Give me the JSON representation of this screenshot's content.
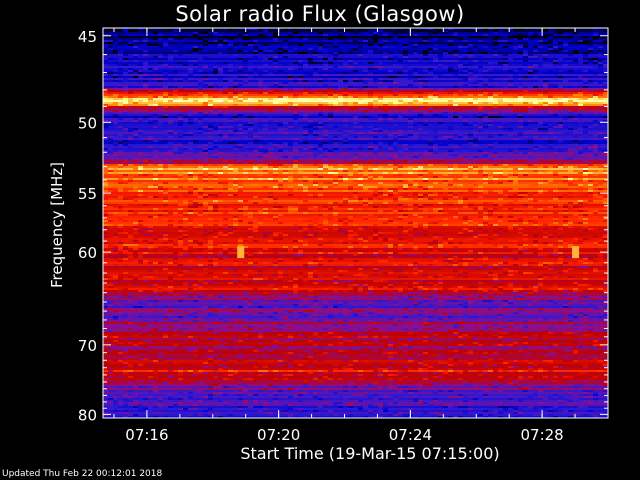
{
  "chart_data": {
    "type": "heatmap",
    "title": "Solar radio Flux (Glasgow)",
    "ylabel": "Frequency [MHz]",
    "xlabel": "Start Time (19-Mar-15 07:15:00)",
    "x_range_minutes": [
      "07:14:40",
      "07:30:00"
    ],
    "ylim": [
      44.6,
      80.6
    ],
    "y_scale": "reciprocal",
    "y_ticks": [
      45,
      50,
      55,
      60,
      70,
      80
    ],
    "y_tick_labels": [
      "45",
      "50",
      "55",
      "60",
      "70",
      "80"
    ],
    "x_ticks": [
      "07:16",
      "07:20",
      "07:24",
      "07:28"
    ],
    "colormap": [
      "#000000",
      "#0000c8",
      "#3218d0",
      "#8a0f90",
      "#c00000",
      "#ff2000",
      "#ff8000",
      "#ffff90",
      "#ffffff"
    ],
    "intensity_by_frequency": [
      {
        "mhz": 44.6,
        "level": 0.05
      },
      {
        "mhz": 45.5,
        "level": 0.12
      },
      {
        "mhz": 46.5,
        "level": 0.18
      },
      {
        "mhz": 47.8,
        "level": 0.2
      },
      {
        "mhz": 48.6,
        "level": 0.95
      },
      {
        "mhz": 49.5,
        "level": 0.2
      },
      {
        "mhz": 50.5,
        "level": 0.22
      },
      {
        "mhz": 51.5,
        "level": 0.2
      },
      {
        "mhz": 52.5,
        "level": 0.35
      },
      {
        "mhz": 53.2,
        "level": 0.78
      },
      {
        "mhz": 54.0,
        "level": 0.7
      },
      {
        "mhz": 56.0,
        "level": 0.62
      },
      {
        "mhz": 58.5,
        "level": 0.6
      },
      {
        "mhz": 60.5,
        "level": 0.55
      },
      {
        "mhz": 62.5,
        "level": 0.5
      },
      {
        "mhz": 63.5,
        "level": 0.6
      },
      {
        "mhz": 65.0,
        "level": 0.3
      },
      {
        "mhz": 67.0,
        "level": 0.35
      },
      {
        "mhz": 69.0,
        "level": 0.5
      },
      {
        "mhz": 71.0,
        "level": 0.45
      },
      {
        "mhz": 73.5,
        "level": 0.58
      },
      {
        "mhz": 76.0,
        "level": 0.35
      },
      {
        "mhz": 78.0,
        "level": 0.25
      },
      {
        "mhz": 80.6,
        "level": 0.2
      }
    ],
    "bursts": [
      {
        "time": "07:18:50",
        "mhz": 60.0,
        "level": 0.8
      },
      {
        "time": "07:29:00",
        "mhz": 60.0,
        "level": 0.8
      }
    ]
  },
  "footer": {
    "updated": "Updated Thu Feb 22 00:12:01 2018"
  }
}
